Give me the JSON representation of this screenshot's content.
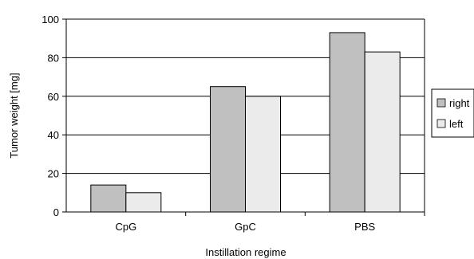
{
  "chart_data": {
    "type": "bar",
    "categories": [
      "CpG",
      "GpC",
      "PBS"
    ],
    "series": [
      {
        "name": "right",
        "values": [
          14,
          65,
          93
        ],
        "color": "#c0c0c0"
      },
      {
        "name": "left",
        "values": [
          10,
          60,
          83
        ],
        "color": "#ebebeb"
      }
    ],
    "title": "",
    "xlabel": "Instillation regime",
    "ylabel": "Tumor weight [mg]",
    "ylim": [
      0,
      100
    ],
    "yticks": [
      0,
      20,
      40,
      60,
      80,
      100
    ],
    "grid": "horizontal",
    "legend": "right"
  }
}
